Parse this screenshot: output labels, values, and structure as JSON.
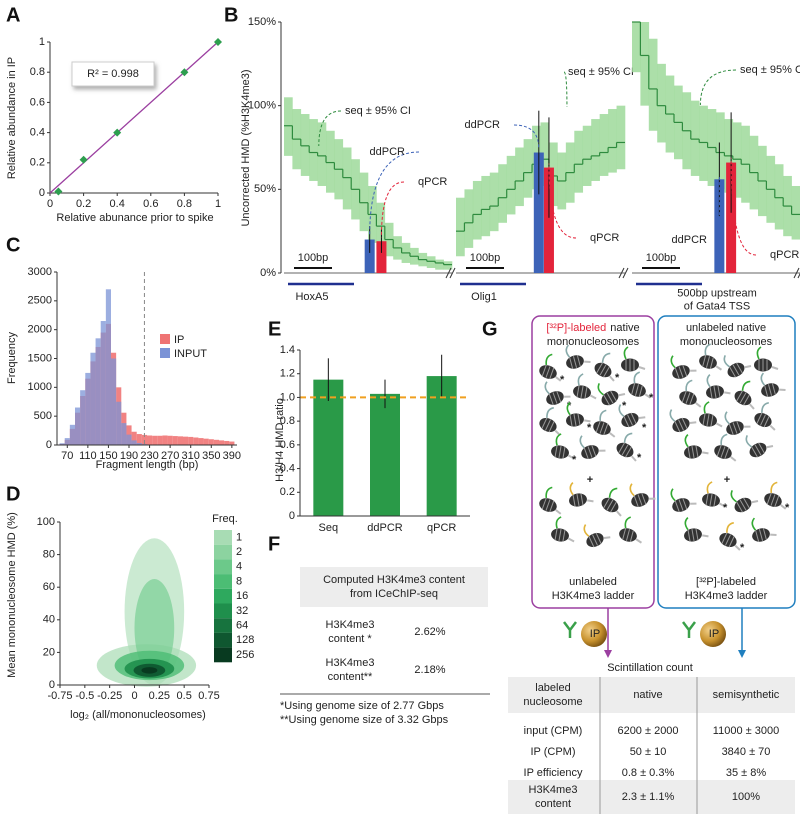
{
  "panel_labels": [
    "A",
    "B",
    "C",
    "D",
    "E",
    "F",
    "G"
  ],
  "chart_data": [
    {
      "type": "scatter",
      "xlabel": "Relative abunance prior to spike",
      "ylabel": "Relative abundance in IP",
      "annotation": "R² = 0.998",
      "x": [
        0.05,
        0.2,
        0.4,
        0.8,
        1
      ],
      "values": [
        0.01,
        0.22,
        0.4,
        0.8,
        1
      ],
      "color": "#2e9e4f",
      "fit_color": "#9b3fa0",
      "xlim": [
        0,
        1
      ],
      "ylim": [
        0,
        1
      ],
      "xticks": [
        0,
        0.2,
        0.4,
        0.6,
        0.8,
        1
      ],
      "yticks": [
        0,
        0.2,
        0.4,
        0.6,
        0.8,
        1
      ]
    },
    {
      "type": "line_ci",
      "ylabel": "Uncorrected HMD (%H3K4me3)",
      "seq_label": "seq ± 95% CI",
      "bar_labels": [
        "ddPCR",
        "qPCR"
      ],
      "scale_label": "100bp",
      "seq_color": "#2e8b3e",
      "ci_color": "#9ed99a",
      "bar_colors": [
        "#3d63b8",
        "#e3243b"
      ],
      "gene_color": "#1f2f8f",
      "ylim": [
        0,
        150
      ],
      "yticks": [
        {
          "value": 0,
          "label": "0%"
        },
        {
          "value": 50,
          "label": "50%"
        },
        {
          "value": 100,
          "label": "100%"
        },
        {
          "value": 150,
          "label": "150%"
        }
      ],
      "panels": [
        {
          "gene": "HoxA5",
          "values": [
            88,
            80,
            76,
            72,
            70,
            66,
            62,
            57,
            50,
            42,
            35,
            28,
            20,
            15,
            12,
            10,
            8,
            7,
            6,
            5
          ],
          "lower": [
            70,
            62,
            58,
            55,
            52,
            48,
            44,
            38,
            32,
            25,
            18,
            14,
            10,
            8,
            6,
            5,
            4,
            3,
            2,
            2
          ],
          "upper": [
            105,
            98,
            95,
            92,
            90,
            85,
            80,
            75,
            68,
            60,
            52,
            42,
            30,
            22,
            18,
            15,
            12,
            10,
            8,
            7
          ],
          "bar_values": [
            20,
            19
          ],
          "bar_errors": [
            8,
            7
          ]
        },
        {
          "gene": "Olig1",
          "values": [
            25,
            30,
            35,
            38,
            40,
            45,
            50,
            55,
            60,
            65,
            68,
            58,
            55,
            60,
            65,
            68,
            70,
            72,
            75,
            78
          ],
          "lower": [
            10,
            15,
            20,
            22,
            25,
            30,
            35,
            40,
            45,
            50,
            52,
            40,
            38,
            42,
            48,
            52,
            55,
            58,
            60,
            62
          ],
          "upper": [
            45,
            50,
            55,
            58,
            60,
            65,
            70,
            75,
            80,
            88,
            90,
            78,
            72,
            78,
            85,
            88,
            92,
            95,
            98,
            100
          ],
          "bar_values": [
            72,
            63
          ],
          "bar_errors": [
            25,
            30
          ]
        },
        {
          "gene": [
            "500bp upstream",
            "of Gata4 TSS"
          ],
          "values": [
            150,
            130,
            110,
            100,
            95,
            90,
            85,
            80,
            78,
            75,
            72,
            70,
            68,
            65,
            60,
            55,
            50,
            45,
            40,
            35
          ],
          "lower": [
            120,
            100,
            85,
            78,
            72,
            68,
            62,
            58,
            55,
            52,
            50,
            48,
            45,
            42,
            38,
            34,
            30,
            26,
            22,
            20
          ],
          "upper": [
            150,
            150,
            140,
            125,
            118,
            112,
            108,
            103,
            100,
            98,
            96,
            92,
            90,
            88,
            82,
            76,
            70,
            65,
            58,
            52
          ],
          "bar_values": [
            56,
            66
          ],
          "bar_errors": [
            22,
            30
          ]
        }
      ]
    },
    {
      "type": "histogram_overlay",
      "xlabel": "Fragment length (bp)",
      "ylabel": "Frequency",
      "x": [
        60,
        70,
        80,
        90,
        100,
        110,
        120,
        130,
        140,
        150,
        160,
        170,
        180,
        190,
        200,
        210,
        220,
        230,
        240,
        250,
        260,
        270,
        280,
        290,
        300,
        310,
        320,
        330,
        340,
        350,
        360,
        370,
        380,
        390
      ],
      "series": [
        {
          "name": "IP",
          "color": "#ef7474",
          "values": [
            20,
            90,
            280,
            560,
            850,
            1150,
            1450,
            1700,
            1950,
            2100,
            1600,
            1000,
            560,
            340,
            230,
            190,
            175,
            165,
            160,
            160,
            165,
            160,
            155,
            150,
            145,
            140,
            130,
            120,
            110,
            100,
            90,
            80,
            70,
            60
          ]
        },
        {
          "name": "INPUT",
          "color": "#7b93d6",
          "values": [
            30,
            120,
            350,
            650,
            950,
            1250,
            1600,
            1850,
            2150,
            2700,
            1500,
            750,
            380,
            180,
            80,
            35,
            15,
            8,
            5,
            3,
            2,
            2,
            1,
            1,
            1,
            0,
            0,
            0,
            0,
            0,
            0,
            0,
            0,
            0
          ]
        }
      ],
      "cutoff": 220,
      "xlim": [
        50,
        400
      ],
      "xticks": [
        70,
        110,
        150,
        190,
        230,
        270,
        310,
        350,
        390
      ],
      "ylim": [
        0,
        3000
      ],
      "yticks": [
        0,
        500,
        1000,
        1500,
        2000,
        2500,
        3000
      ]
    },
    {
      "type": "density",
      "xlabel": "log₂ (all/mononucleosomes)",
      "ylabel": "Mean mononucleosome HMD (%)",
      "xlim": [
        -0.75,
        0.75
      ],
      "xticks": [
        -0.75,
        -0.5,
        -0.25,
        0,
        0.25,
        0.5,
        0.75
      ],
      "ylim": [
        0,
        100
      ],
      "yticks": [
        0,
        20,
        40,
        60,
        80,
        100
      ],
      "colorbar": {
        "title": "Freq.",
        "levels": [
          1,
          2,
          4,
          8,
          16,
          32,
          64,
          128,
          256
        ],
        "colors": [
          "#a8dcb4",
          "#8cd3a0",
          "#6cc98a",
          "#4cbd74",
          "#2ea95e",
          "#1f8f4c",
          "#17733e",
          "#0f5730",
          "#083a20"
        ]
      }
    },
    {
      "type": "bar",
      "ylabel": "H3/H4 HMD ratio",
      "categories": [
        "Seq",
        "ddPCR",
        "qPCR"
      ],
      "values": [
        1.15,
        1.03,
        1.18
      ],
      "errors": [
        0.18,
        0.12,
        0.18
      ],
      "color": "#2a9a48",
      "reference_line": 1,
      "reference_color": "#f0a020",
      "ylim": [
        0,
        1.4
      ],
      "yticks": [
        0,
        0.2,
        0.4,
        0.6,
        0.8,
        {
          "value": 1,
          "label": "1.0"
        },
        1.2,
        1.4
      ]
    }
  ],
  "panel_f": {
    "title": [
      "Computed H3K4me3 content",
      "from ICeChIP-seq"
    ],
    "rows": [
      [
        [
          "H3K4me3",
          "content *"
        ],
        "2.62%"
      ],
      [
        [
          "H3K4me3",
          "content**"
        ],
        "2.18%"
      ]
    ],
    "footnotes": [
      "*Using genome size of 2.77 Gbps",
      "**Using genome size of 3.32 Gbps"
    ]
  },
  "panel_g": {
    "left_box": {
      "title_labeled": "[³²P]-labeled",
      "title_rest": [
        "native",
        "mononucleosomes"
      ],
      "bottom": [
        "unlabeled",
        "H3K4me3 ladder"
      ]
    },
    "right_box": {
      "title": [
        "unlabeled native",
        "mononucleosomes"
      ],
      "bottom_labeled": "[³²P]-labeled",
      "bottom_rest": "H3K4me3 ladder"
    },
    "plus": "+",
    "bead_label": "IP",
    "table": {
      "title": "Scintillation count",
      "header": [
        [
          "labeled",
          "nucleosome"
        ],
        "native",
        "semisynthetic"
      ],
      "rows": [
        [
          "input (CPM)",
          "6200 ± 2000",
          "11000 ± 3000"
        ],
        [
          "IP (CPM)",
          "50 ± 10",
          "3840 ± 70"
        ],
        [
          "IP efficiency",
          "0.8 ± 0.3%",
          "35 ± 8%"
        ],
        [
          [
            "H3K4me3",
            "content"
          ],
          "2.3 ± 1.1%",
          "100%"
        ]
      ]
    }
  }
}
